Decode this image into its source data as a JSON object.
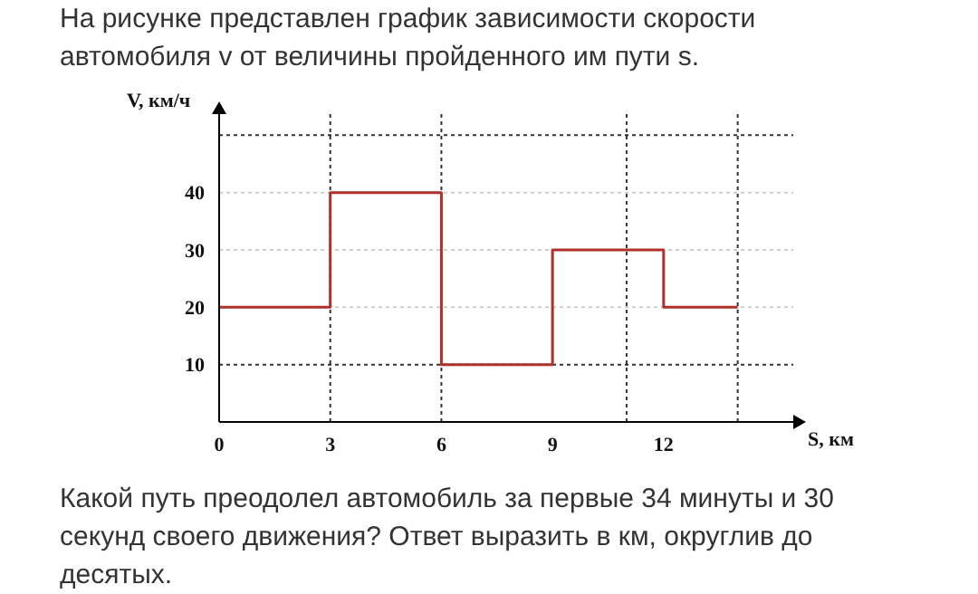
{
  "chart_data": {
    "type": "step",
    "title": "На рисунке представлен график зависимости скорости автомобиля v от величины пройденного им пути s.",
    "annotations": [
      "Какой путь преодолел автомобиль за первые 34 минуты и 30 секунд своего движения? Ответ выразить в км, округлив до десятых."
    ],
    "xlabel": "S, км",
    "ylabel": "V, км/ч",
    "x": [
      0,
      3,
      6,
      9,
      12,
      14
    ],
    "series": [
      {
        "color": "#b0302a",
        "values": [
          20,
          40,
          10,
          30,
          20,
          20
        ]
      }
    ],
    "xlim": [
      0,
      15.5
    ],
    "xticks": [
      0,
      3,
      6,
      9,
      12
    ],
    "ylim": [
      0,
      54
    ],
    "yticks": [
      10,
      20,
      30,
      40
    ],
    "grid": false,
    "line_style": "solid",
    "marker": "none",
    "ref_lines": [
      {
        "axis": "x",
        "value": 3,
        "line_style": "dotted",
        "color": "#333333"
      },
      {
        "axis": "x",
        "value": 6,
        "line_style": "dotted",
        "color": "#333333"
      },
      {
        "axis": "x",
        "value": 11,
        "line_style": "dotted",
        "color": "#333333"
      },
      {
        "axis": "x",
        "value": 14,
        "line_style": "dotted",
        "color": "#333333"
      },
      {
        "axis": "y",
        "value": 10,
        "line_style": "dotted",
        "color": "#333333"
      },
      {
        "axis": "y",
        "value": 20,
        "line_style": "dotted",
        "color": "#cccccc"
      },
      {
        "axis": "y",
        "value": 30,
        "line_style": "dotted",
        "color": "#cccccc"
      },
      {
        "axis": "y",
        "value": 40,
        "line_style": "dotted",
        "color": "#cccccc"
      },
      {
        "axis": "y",
        "value": 50,
        "line_style": "dotted",
        "color": "#333333"
      }
    ]
  }
}
